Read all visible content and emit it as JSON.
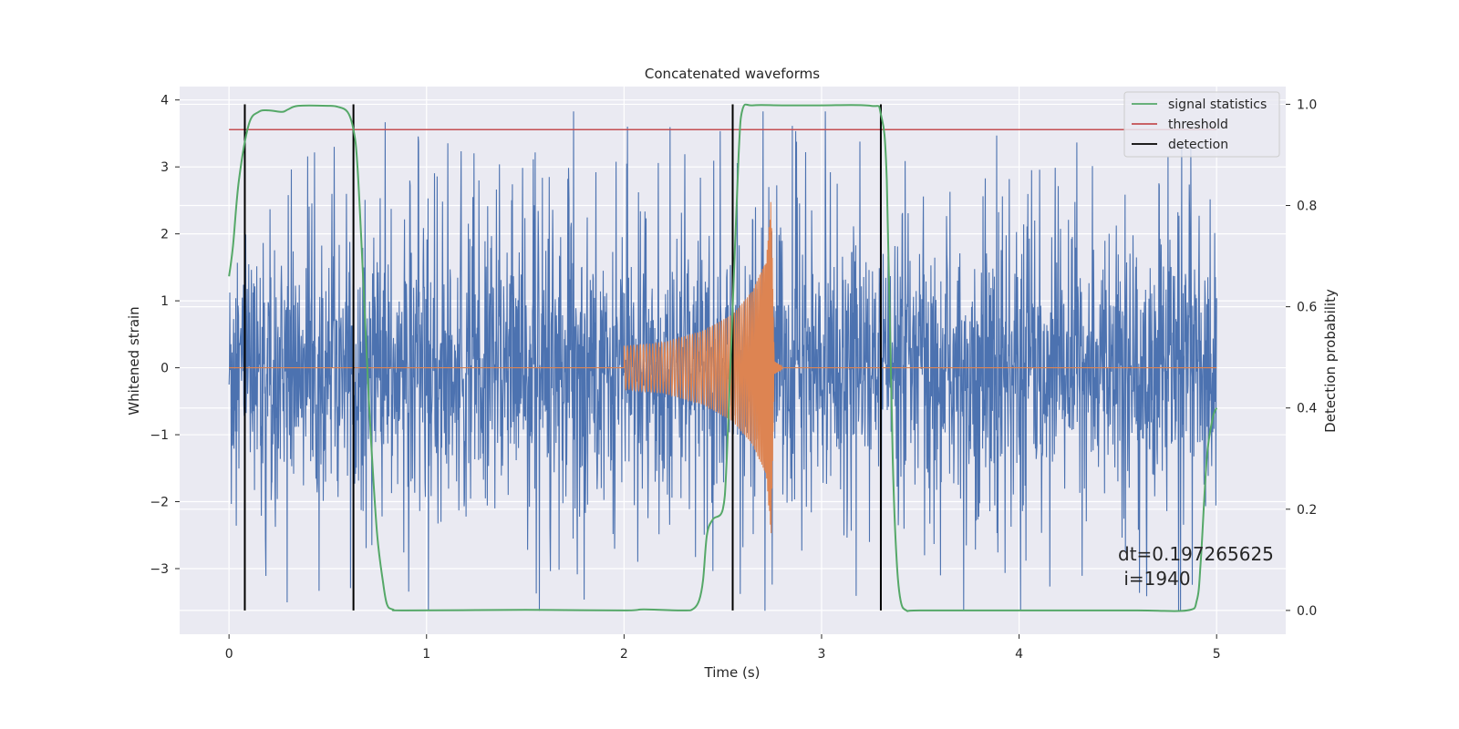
{
  "chart_data": {
    "type": "line",
    "title": "Concatenated waveforms",
    "xlabel": "Time (s)",
    "ylabel": "Whitened strain",
    "y2label": "Detection probability",
    "xlim": [
      -0.25,
      5.35
    ],
    "ylim": [
      -3.98,
      4.2
    ],
    "y2lim": [
      -0.047,
      1.035
    ],
    "x_ticks": [
      0,
      1,
      2,
      3,
      4,
      5
    ],
    "x_tick_labels": [
      "0",
      "1",
      "2",
      "3",
      "4",
      "5"
    ],
    "y_ticks": [
      -3,
      -2,
      -1,
      0,
      1,
      2,
      3,
      4
    ],
    "y_tick_labels": [
      "−3",
      "−2",
      "−1",
      "0",
      "1",
      "2",
      "3",
      "4"
    ],
    "y2_ticks": [
      0.0,
      0.2,
      0.4,
      0.6,
      0.8,
      1.0
    ],
    "y2_tick_labels": [
      "0.0",
      "0.2",
      "0.4",
      "0.6",
      "0.8",
      "1.0"
    ],
    "grid": true,
    "legend_position": "top-right",
    "background_color": "#eaeaf2",
    "series": [
      {
        "name": "",
        "axis": "left",
        "kind": "noise",
        "color": "#4c72b0",
        "x_range": [
          0,
          5
        ],
        "typical_amplitude": 0.85,
        "min": -3.63,
        "max": 3.83
      },
      {
        "name": "",
        "axis": "left",
        "kind": "chirp",
        "color": "#dd8452",
        "x": [
          0,
          2.0,
          2.2,
          2.4,
          2.55,
          2.65,
          2.72,
          2.745,
          2.76,
          2.8,
          5.0
        ],
        "envelope": [
          0,
          0.32,
          0.38,
          0.55,
          0.8,
          1.15,
          1.6,
          2.55,
          0.1,
          0.02,
          0
        ]
      },
      {
        "name": "signal statistics",
        "axis": "right",
        "color": "#55a868",
        "x": [
          0.0,
          0.02,
          0.05,
          0.1,
          0.15,
          0.2,
          0.27,
          0.3,
          0.35,
          0.5,
          0.55,
          0.6,
          0.63,
          0.65,
          0.68,
          0.7,
          0.72,
          0.75,
          0.78,
          0.8,
          0.83,
          0.9,
          1.5,
          2.0,
          2.1,
          2.3,
          2.35,
          2.38,
          2.4,
          2.42,
          2.45,
          2.5,
          2.52,
          2.55,
          2.58,
          2.6,
          2.65,
          2.8,
          3.0,
          3.25,
          3.3,
          3.33,
          3.36,
          3.38,
          3.4,
          3.43,
          3.5,
          4.0,
          4.6,
          4.85,
          4.9,
          4.92,
          4.95,
          4.98,
          5.0
        ],
        "y": [
          0.66,
          0.72,
          0.85,
          0.96,
          0.985,
          0.988,
          0.985,
          0.99,
          0.997,
          0.997,
          0.995,
          0.985,
          0.95,
          0.88,
          0.65,
          0.48,
          0.33,
          0.15,
          0.055,
          0.012,
          0.002,
          0.0,
          0.001,
          0.0,
          0.002,
          0.0,
          0.003,
          0.02,
          0.06,
          0.15,
          0.18,
          0.2,
          0.3,
          0.6,
          0.9,
          0.99,
          0.998,
          0.998,
          0.998,
          0.997,
          0.98,
          0.85,
          0.3,
          0.1,
          0.02,
          0.0,
          0.0,
          0.0,
          0.0,
          0.0,
          0.02,
          0.1,
          0.3,
          0.38,
          0.4
        ]
      },
      {
        "name": "threshold",
        "axis": "right",
        "color": "#c44e52",
        "x": [
          0,
          5
        ],
        "y": [
          0.95,
          0.95
        ]
      }
    ],
    "detections": {
      "name": "detection",
      "color": "#000000",
      "x": [
        0.08,
        0.63,
        2.55,
        3.3
      ],
      "y_range_right": [
        0.0,
        1.0
      ]
    },
    "annotation": "dt=0.197265625\n i=1940"
  }
}
